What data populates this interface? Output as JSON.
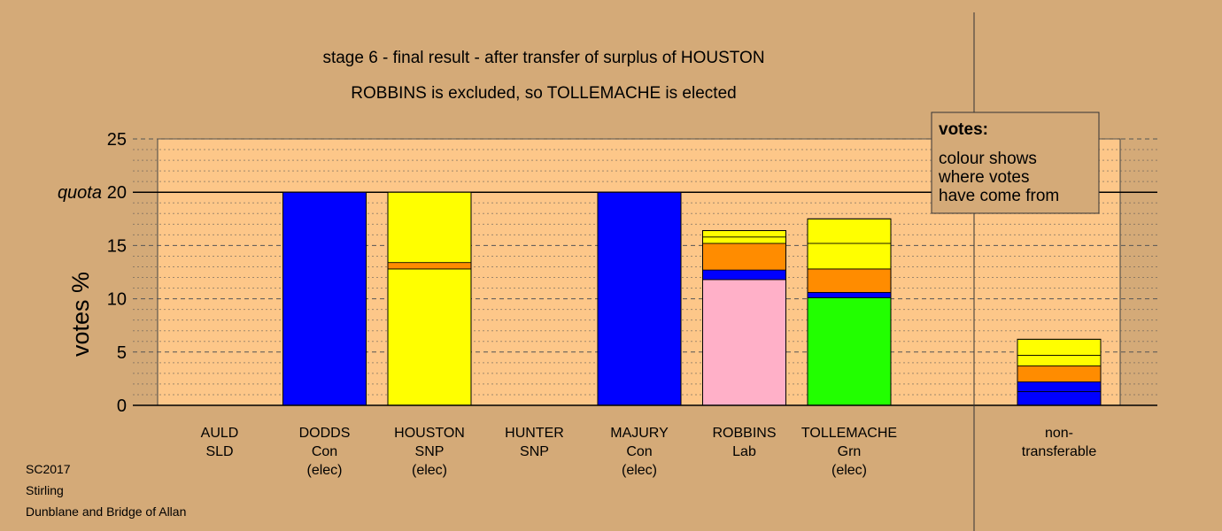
{
  "chart_data": {
    "type": "bar",
    "title": "stage 6 - final result - after transfer of surplus of HOUSTON",
    "subtitle": "ROBBINS is excluded, so TOLLEMACHE is elected",
    "ylabel": "votes %",
    "ylim": [
      0,
      25
    ],
    "yticks": [
      "0",
      "5",
      "10",
      "15",
      "20",
      "25"
    ],
    "quota": 20,
    "quota_label": "quota",
    "grid": true,
    "legend": {
      "title": "votes:",
      "lines": [
        "colour shows",
        "where votes",
        "have come from"
      ],
      "placement": "top-right"
    },
    "series_colors": {
      "Con": "#0000ff",
      "SNP": "#ffff00",
      "Lab": "#ffb0c8",
      "Grn": "#22ff00",
      "transfer": "#ff8c00"
    },
    "categories": [
      {
        "name": "AULD",
        "party": "SLD",
        "status": "",
        "segments": []
      },
      {
        "name": "DODDS",
        "party": "Con",
        "status": "(elec)",
        "segments": [
          {
            "color": "Con",
            "value": 20
          }
        ]
      },
      {
        "name": "HOUSTON",
        "party": "SNP",
        "status": "(elec)",
        "segments": [
          {
            "color": "SNP",
            "value": 12.8
          },
          {
            "color": "transfer",
            "value": 0.6
          },
          {
            "color": "SNP",
            "value": 6.6
          }
        ]
      },
      {
        "name": "HUNTER",
        "party": "SNP",
        "status": "",
        "segments": []
      },
      {
        "name": "MAJURY",
        "party": "Con",
        "status": "(elec)",
        "segments": [
          {
            "color": "Con",
            "value": 20
          }
        ]
      },
      {
        "name": "ROBBINS",
        "party": "Lab",
        "status": "",
        "segments": [
          {
            "color": "Lab",
            "value": 11.8
          },
          {
            "color": "Con",
            "value": 0.9
          },
          {
            "color": "transfer",
            "value": 2.5
          },
          {
            "color": "SNP",
            "value": 0.6
          },
          {
            "color": "SNP",
            "value": 0.6
          }
        ]
      },
      {
        "name": "TOLLEMACHE",
        "party": "Grn",
        "status": "(elec)",
        "segments": [
          {
            "color": "Grn",
            "value": 10.1
          },
          {
            "color": "Con",
            "value": 0.5
          },
          {
            "color": "transfer",
            "value": 2.2
          },
          {
            "color": "SNP",
            "value": 2.4
          },
          {
            "color": "SNP",
            "value": 2.3
          }
        ]
      },
      {
        "name": "",
        "party": "",
        "status": "",
        "segments": []
      },
      {
        "name": "non-",
        "party": "transferable",
        "status": "",
        "segments": [
          {
            "color": "Con",
            "value": 1.3
          },
          {
            "color": "Con",
            "value": 0.9
          },
          {
            "color": "transfer",
            "value": 1.5
          },
          {
            "color": "SNP",
            "value": 1.0
          },
          {
            "color": "SNP",
            "value": 1.5
          }
        ]
      }
    ]
  },
  "footer": {
    "line1": "SC2017",
    "line2": "Stirling",
    "line3": "Dunblane and Bridge of Allan"
  }
}
